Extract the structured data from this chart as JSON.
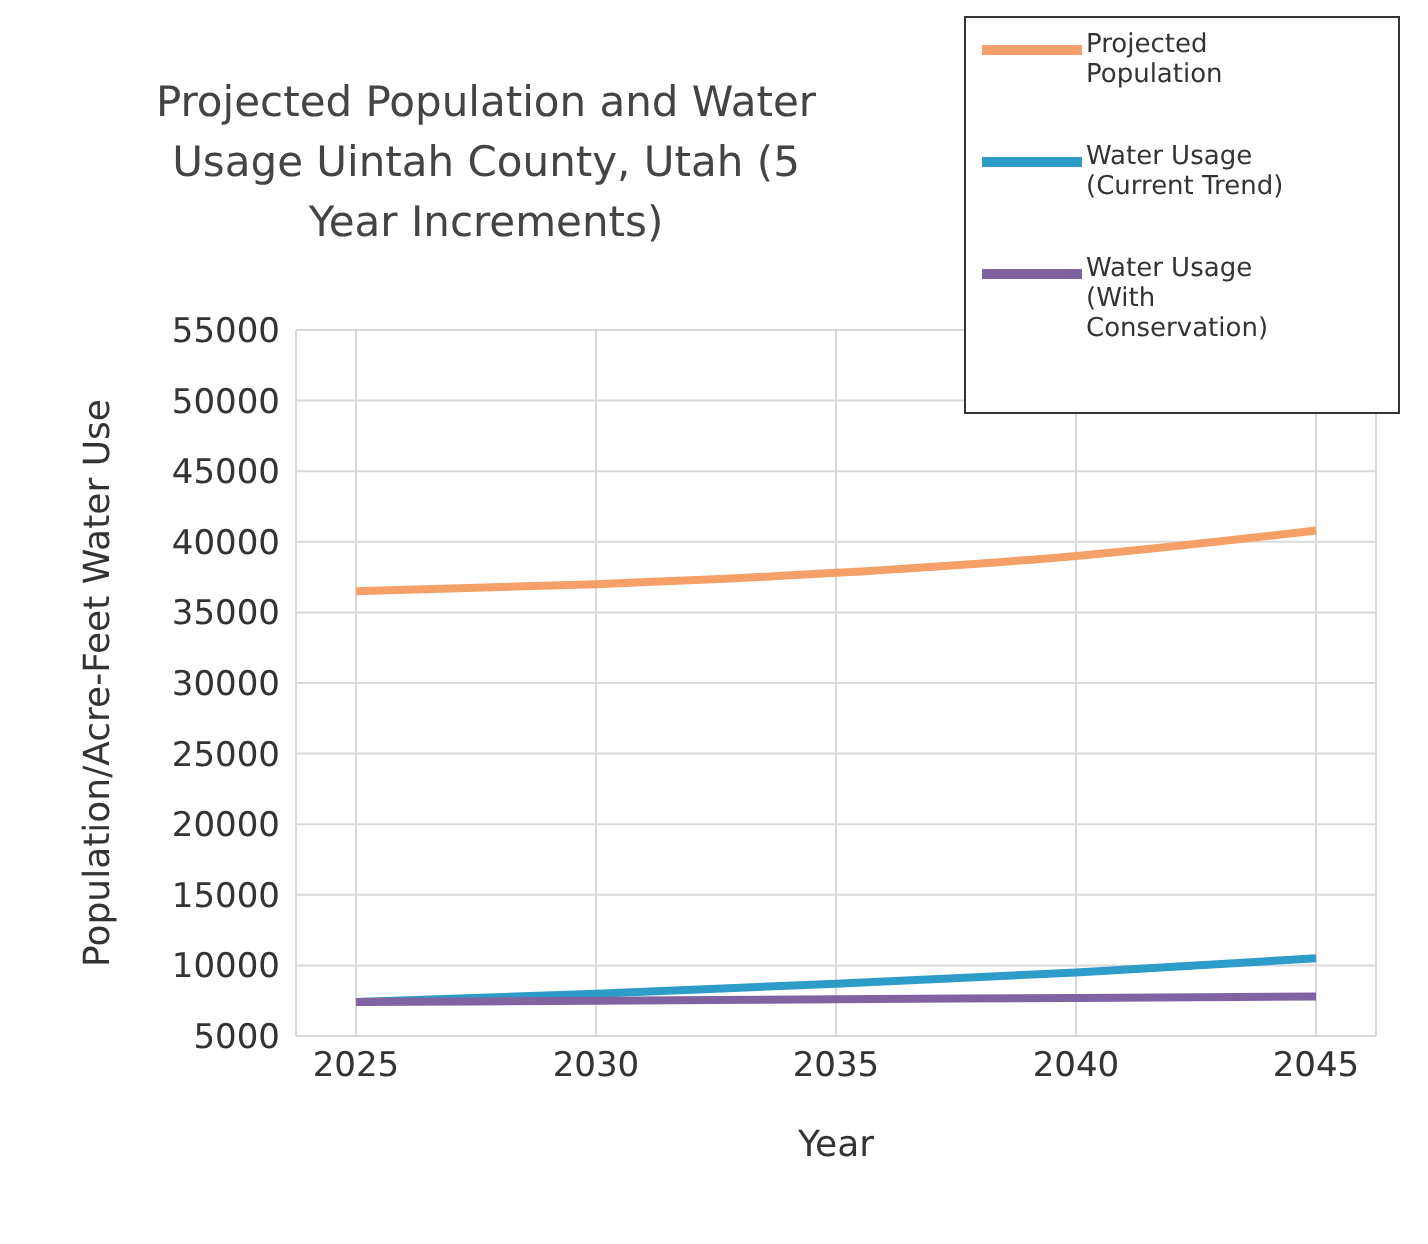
{
  "chart_data": {
    "type": "line",
    "title": "Projected Population and Water Usage Uintah County, Utah (5 Year Increments)",
    "xlabel": "Year",
    "ylabel": "Population/Acre-Feet Water Use",
    "categories": [
      "2025",
      "2030",
      "2035",
      "2040",
      "2045"
    ],
    "series": [
      {
        "name": "Projected Population",
        "color": "#f4a068",
        "values": [
          36500,
          37000,
          37800,
          39000,
          40800
        ]
      },
      {
        "name": "Water Usage (Current Trend)",
        "color": "#2e9cc8",
        "values": [
          7400,
          8000,
          8700,
          9500,
          10500
        ]
      },
      {
        "name": "Water Usage (With Conservation)",
        "color": "#8064a2",
        "values": [
          7400,
          7500,
          7600,
          7700,
          7800
        ]
      }
    ],
    "ylim": [
      5000,
      55000
    ],
    "yticks": [
      5000,
      10000,
      15000,
      20000,
      25000,
      30000,
      35000,
      40000,
      45000,
      50000,
      55000
    ],
    "grid": true,
    "legend": "top right",
    "marker": "none",
    "line_style": "solid"
  }
}
